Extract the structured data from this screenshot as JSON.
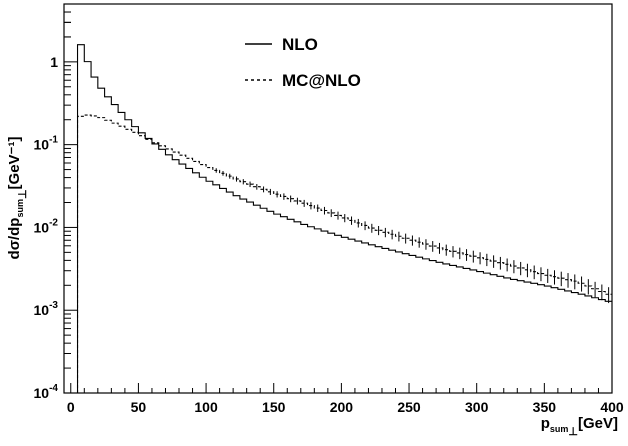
{
  "chart_data": {
    "type": "line",
    "style": "histogram-step",
    "xlabel": {
      "main": "p",
      "sub1": "sum",
      "sub2": "⊥",
      "unit": "[GeV]"
    },
    "ylabel": {
      "main": "dσ/dp",
      "sub1": "sum",
      "sub2": "⊥",
      "unit": "[GeV⁻¹]"
    },
    "xlim": [
      -5,
      400
    ],
    "ylim": [
      0.0001,
      5
    ],
    "yscale": "log",
    "grid": false,
    "legend_position": "top-center",
    "x_ticks": [
      0,
      50,
      100,
      150,
      200,
      250,
      300,
      350,
      400
    ],
    "y_ticks": [
      {
        "value": 1,
        "base": "1",
        "exp": ""
      },
      {
        "value": 0.1,
        "base": "10",
        "exp": "-1"
      },
      {
        "value": 0.01,
        "base": "10",
        "exp": "-2"
      },
      {
        "value": 0.001,
        "base": "10",
        "exp": "-3"
      },
      {
        "value": 0.0001,
        "base": "10",
        "exp": "-4"
      }
    ],
    "series": [
      {
        "name": "NLO",
        "dash": "solid",
        "color": "#000000",
        "points": [
          [
            5,
            2.0
          ],
          [
            10,
            1.3
          ],
          [
            15,
            0.78
          ],
          [
            20,
            0.55
          ],
          [
            25,
            0.42
          ],
          [
            30,
            0.34
          ],
          [
            40,
            0.22
          ],
          [
            50,
            0.15
          ],
          [
            60,
            0.11
          ],
          [
            75,
            0.07
          ],
          [
            100,
            0.038
          ],
          [
            125,
            0.023
          ],
          [
            150,
            0.015
          ],
          [
            175,
            0.0105
          ],
          [
            200,
            0.0078
          ],
          [
            225,
            0.006
          ],
          [
            250,
            0.0047
          ],
          [
            275,
            0.0037
          ],
          [
            300,
            0.003
          ],
          [
            325,
            0.0024
          ],
          [
            350,
            0.002
          ],
          [
            375,
            0.0016
          ],
          [
            400,
            0.00125
          ]
        ]
      },
      {
        "name": "MC@NLO",
        "dash": "dashed",
        "color": "#000000",
        "points": [
          [
            5,
            0.21
          ],
          [
            10,
            0.23
          ],
          [
            20,
            0.22
          ],
          [
            30,
            0.19
          ],
          [
            40,
            0.16
          ],
          [
            50,
            0.135
          ],
          [
            60,
            0.11
          ],
          [
            75,
            0.085
          ],
          [
            100,
            0.055
          ],
          [
            125,
            0.037
          ],
          [
            150,
            0.026
          ],
          [
            175,
            0.019
          ],
          [
            200,
            0.0135
          ],
          [
            225,
            0.0095
          ],
          [
            250,
            0.0072
          ],
          [
            275,
            0.0055
          ],
          [
            300,
            0.0044
          ],
          [
            325,
            0.0035
          ],
          [
            350,
            0.0027
          ],
          [
            375,
            0.0022
          ],
          [
            400,
            0.0015
          ]
        ]
      }
    ]
  }
}
